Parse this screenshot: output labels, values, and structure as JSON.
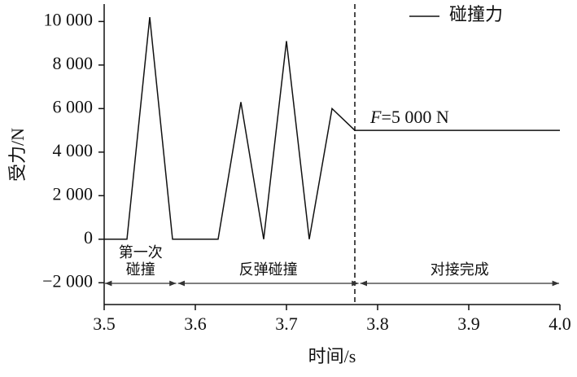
{
  "chart_data": {
    "type": "line",
    "x_label": "时间/s",
    "y_label": "受力/N",
    "x": [
      3.5,
      3.525,
      3.55,
      3.575,
      3.625,
      3.65,
      3.675,
      3.7,
      3.725,
      3.75,
      3.775,
      4.0
    ],
    "series": [
      {
        "name": "碰撞力",
        "color": "#111111",
        "values": [
          0,
          0,
          10200,
          0,
          0,
          6300,
          0,
          9100,
          0,
          6000,
          5000,
          5000
        ]
      }
    ],
    "xlim": [
      3.5,
      4.0
    ],
    "xticks": [
      {
        "value": 3.5,
        "label": "3.5"
      },
      3.6,
      3.7,
      3.8,
      3.9,
      {
        "value": 4.0,
        "label": "4.0"
      }
    ],
    "ylim": [
      -3000,
      10800
    ],
    "yticks": [
      {
        "value": -2000,
        "label": "−2 000"
      },
      0,
      {
        "value": 2000,
        "label": "2 000"
      },
      {
        "value": 4000,
        "label": "4 000"
      },
      {
        "value": 6000,
        "label": "6 000"
      },
      {
        "value": 8000,
        "label": "8 000"
      },
      {
        "value": 10000,
        "label": "10 000"
      }
    ],
    "vline": 3.775,
    "annotation": {
      "italic": "F",
      "text": "=5 000 N"
    },
    "phases": [
      {
        "label": [
          "第一次",
          "碰撞"
        ],
        "x": [
          3.5,
          3.58
        ]
      },
      {
        "label": [
          "反弹碰撞"
        ],
        "x": [
          3.58,
          3.78
        ]
      },
      {
        "label": [
          "对接完成"
        ],
        "x": [
          3.78,
          4.0
        ]
      }
    ],
    "legend": "top-right"
  }
}
